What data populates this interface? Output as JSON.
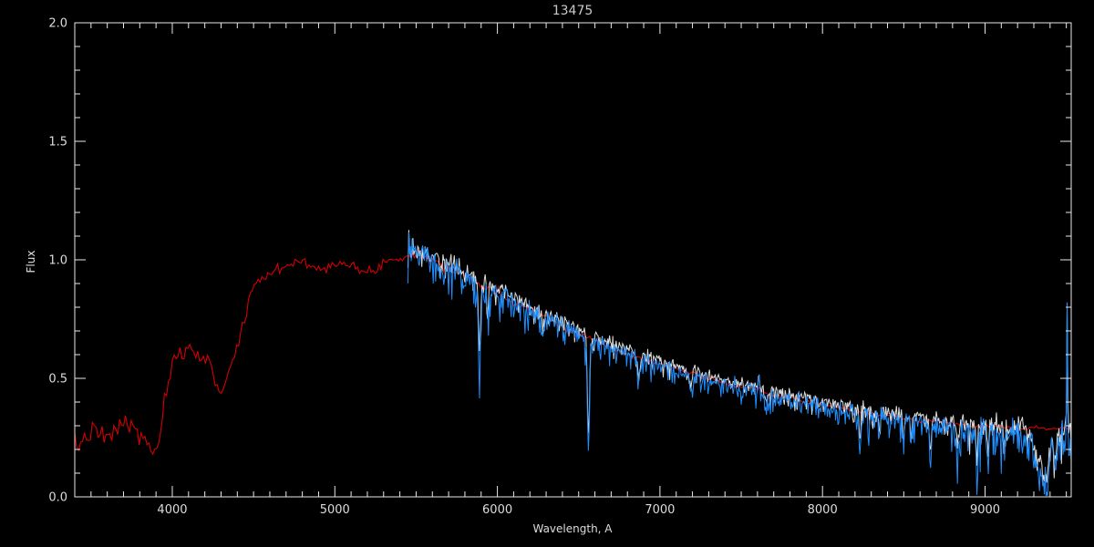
{
  "colors": {
    "background": "#000000",
    "axis": "#e8e8e8",
    "text": "#dcdcdc",
    "title_text": "#c9c9c9",
    "template_red": "#d40000",
    "observed_blue": "#1e8fff",
    "smoothed_white": "#dedede"
  },
  "chart_data": {
    "type": "line",
    "title": "13475",
    "xlabel": "Wavelength, A",
    "ylabel": "Flux",
    "xlim": [
      3400,
      9530
    ],
    "ylim": [
      0.0,
      2.0
    ],
    "grid": false,
    "legend": "none",
    "x_major_ticks": [
      4000,
      5000,
      6000,
      7000,
      8000,
      9000
    ],
    "x_tick_labels": [
      "4000",
      "5000",
      "6000",
      "7000",
      "8000",
      "9000"
    ],
    "x_minor_step": 100,
    "y_major_ticks": [
      0.0,
      0.5,
      1.0,
      1.5,
      2.0
    ],
    "y_tick_labels": [
      "0.0",
      "0.5",
      "1.0",
      "1.5",
      "2.0"
    ],
    "y_minor_step": 0.1,
    "series": [
      {
        "name": "template-spectrum",
        "color": "#d40000",
        "x_start": 3400,
        "x_step": 100,
        "values": [
          0.2,
          0.28,
          0.24,
          0.32,
          0.26,
          0.18,
          0.56,
          0.63,
          0.59,
          0.44,
          0.63,
          0.9,
          0.94,
          0.98,
          1.0,
          0.95,
          1.0,
          0.97,
          0.94,
          0.99,
          1.01,
          1.03,
          1.0,
          0.97,
          0.94,
          0.89,
          0.86,
          0.82,
          0.79,
          0.76,
          0.72,
          0.69,
          0.66,
          0.63,
          0.6,
          0.58,
          0.56,
          0.54,
          0.52,
          0.5,
          0.48,
          0.46,
          0.45,
          0.43,
          0.42,
          0.4,
          0.39,
          0.38,
          0.36,
          0.35,
          0.34,
          0.33,
          0.32,
          0.32,
          0.31,
          0.3,
          0.3,
          0.3,
          0.29,
          0.29,
          0.29,
          0.29
        ],
        "noise_amp": [
          [
            3400,
            0.025
          ],
          [
            4400,
            0.015
          ],
          [
            5500,
            0.01
          ],
          [
            7000,
            0.005
          ],
          [
            9530,
            0.004
          ]
        ],
        "feature_scale": 0
      },
      {
        "name": "observed-spectrum-smoothed",
        "color": "#dedede",
        "x_start": 5450,
        "x_step": 100,
        "values": [
          1.08,
          1.04,
          1.01,
          0.98,
          0.94,
          0.9,
          0.87,
          0.83,
          0.8,
          0.77,
          0.73,
          0.7,
          0.67,
          0.64,
          0.62,
          0.6,
          0.57,
          0.55,
          0.53,
          0.51,
          0.49,
          0.48,
          0.46,
          0.45,
          0.43,
          0.42,
          0.4,
          0.39,
          0.38,
          0.37,
          0.36,
          0.35,
          0.34,
          0.33,
          0.32,
          0.31,
          0.31,
          0.3,
          0.3,
          0.29,
          0.28,
          0.29
        ],
        "noise_amp": [
          [
            5450,
            0.04
          ],
          [
            7000,
            0.02
          ],
          [
            8600,
            0.03
          ],
          [
            9530,
            0.045
          ]
        ],
        "feature_scale": 0.85
      },
      {
        "name": "observed-spectrum",
        "color": "#1e8fff",
        "x_start": 5450,
        "x_step": 100,
        "values": [
          1.06,
          1.02,
          0.99,
          0.96,
          0.92,
          0.88,
          0.85,
          0.81,
          0.78,
          0.75,
          0.71,
          0.68,
          0.65,
          0.62,
          0.6,
          0.58,
          0.55,
          0.53,
          0.51,
          0.49,
          0.47,
          0.46,
          0.44,
          0.43,
          0.41,
          0.4,
          0.38,
          0.37,
          0.36,
          0.35,
          0.34,
          0.33,
          0.32,
          0.31,
          0.3,
          0.29,
          0.29,
          0.28,
          0.28,
          0.27,
          0.26,
          0.27
        ],
        "noise_amp": [
          [
            5450,
            0.055
          ],
          [
            6200,
            0.04
          ],
          [
            7000,
            0.03
          ],
          [
            7900,
            0.028
          ],
          [
            8600,
            0.04
          ],
          [
            9000,
            0.055
          ],
          [
            9530,
            0.07
          ]
        ],
        "feature_scale": 1
      }
    ],
    "absorption_features": [
      {
        "x": 5890,
        "sigma": 7,
        "depth": 0.34
      },
      {
        "x": 5940,
        "sigma": 5,
        "depth": 0.1
      },
      {
        "x": 6280,
        "sigma": 6,
        "depth": 0.08
      },
      {
        "x": 6560,
        "sigma": 7,
        "depth": 0.48
      },
      {
        "x": 6870,
        "sigma": 10,
        "depth": 0.1
      },
      {
        "x": 7190,
        "sigma": 9,
        "depth": 0.08
      },
      {
        "x": 7610,
        "sigma": 4,
        "depth": -0.08
      },
      {
        "x": 7650,
        "sigma": 8,
        "depth": 0.07
      },
      {
        "x": 8230,
        "sigma": 5,
        "depth": 0.19
      },
      {
        "x": 8350,
        "sigma": 4,
        "depth": 0.1
      },
      {
        "x": 8500,
        "sigma": 5,
        "depth": 0.13
      },
      {
        "x": 8545,
        "sigma": 5,
        "depth": 0.12
      },
      {
        "x": 8665,
        "sigma": 6,
        "depth": 0.16
      },
      {
        "x": 8830,
        "sigma": 5,
        "depth": 0.12
      },
      {
        "x": 8950,
        "sigma": 5,
        "depth": 0.17
      },
      {
        "x": 9020,
        "sigma": 5,
        "depth": 0.13
      },
      {
        "x": 9120,
        "sigma": 5,
        "depth": 0.1
      },
      {
        "x": 9340,
        "sigma": 35,
        "depth": 0.16
      },
      {
        "x": 9380,
        "sigma": 12,
        "depth": 0.12
      },
      {
        "x": 9430,
        "sigma": 8,
        "depth": 0.14
      },
      {
        "x": 9505,
        "sigma": 3,
        "depth": -0.58
      }
    ]
  }
}
